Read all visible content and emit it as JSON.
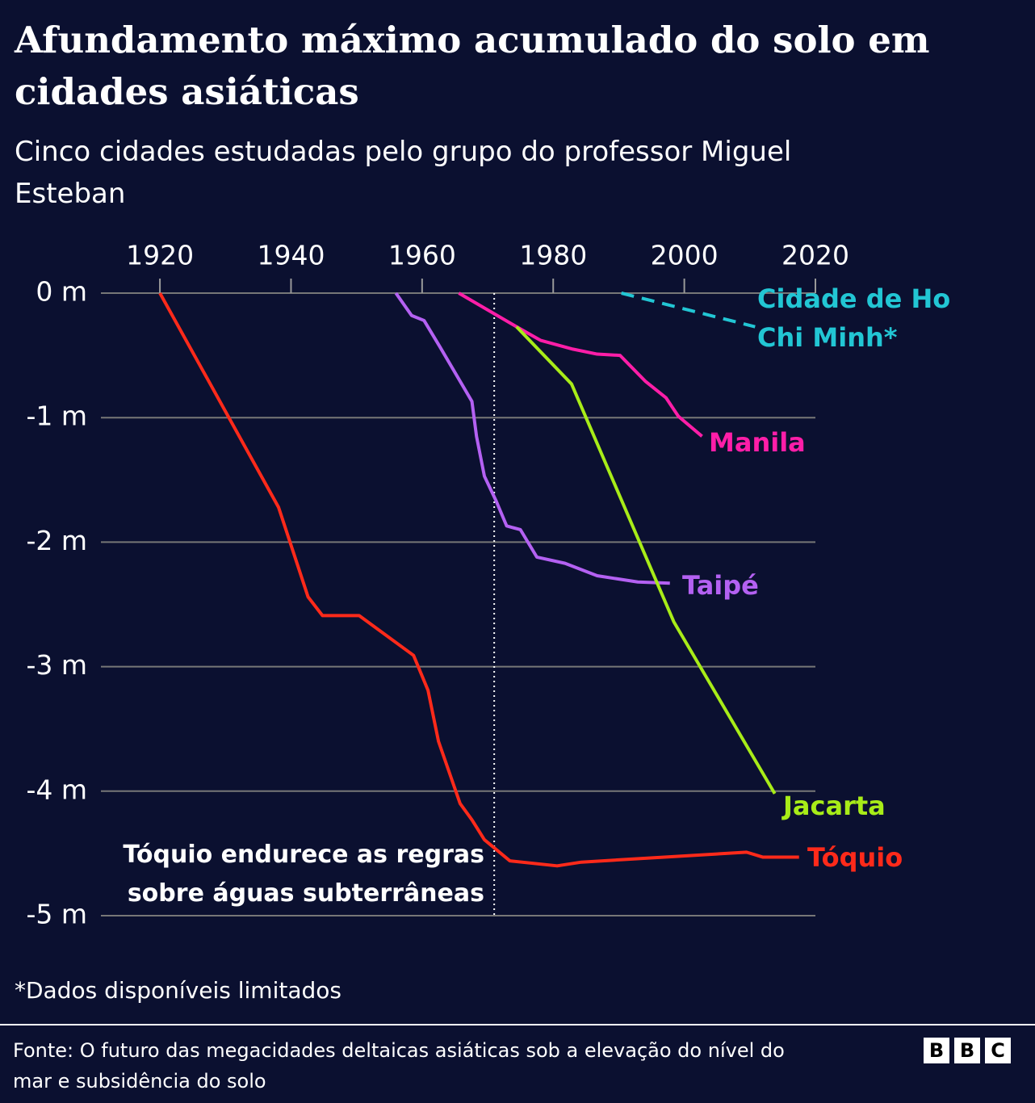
{
  "chart_data": {
    "type": "line",
    "title": "Afundamento máximo acumulado do solo em cidades asiáticas",
    "subtitle": "Cinco cidades estudadas pelo grupo do professor Miguel Esteban",
    "xlim": [
      1911,
      2020
    ],
    "xticks": [
      1920,
      1940,
      1960,
      1980,
      2000,
      2020
    ],
    "ylim": [
      -5,
      0
    ],
    "yticks": [
      {
        "value": 0,
        "label": "0 m"
      },
      {
        "value": -1,
        "label": "-1 m"
      },
      {
        "value": -2,
        "label": "-2 m"
      },
      {
        "value": -3,
        "label": "-3 m"
      },
      {
        "value": -4,
        "label": "-4 m"
      },
      {
        "value": -5,
        "label": "-5 m"
      }
    ],
    "grid": true,
    "series": [
      {
        "name": "Cidade de Ho Chi Minh*",
        "color": "#22c6d4",
        "dashed": true,
        "x": [
          1990.4,
          2010.8
        ],
        "values": [
          0,
          -0.27
        ]
      },
      {
        "name": "Manila",
        "color": "#ff1ea8",
        "x": [
          1965.6,
          1974.4,
          1978.1,
          1983,
          1986.7,
          1990.2,
          1994.1,
          1997.2,
          1999.1,
          2002.7
        ],
        "values": [
          0,
          -0.27,
          -0.38,
          -0.45,
          -0.49,
          -0.5,
          -0.71,
          -0.84,
          -0.99,
          -1.15
        ]
      },
      {
        "name": "Taipé",
        "color": "#b461f2",
        "x": [
          1956,
          1958.4,
          1960.3,
          1962.7,
          1967.6,
          1968.3,
          1969.5,
          1971.3,
          1972.9,
          1975,
          1977.5,
          1981.8,
          1986.7,
          1992.9,
          1997.8
        ],
        "values": [
          0,
          -0.18,
          -0.22,
          -0.43,
          -0.87,
          -1.15,
          -1.47,
          -1.67,
          -1.87,
          -1.9,
          -2.12,
          -2.17,
          -2.27,
          -2.32,
          -2.33
        ]
      },
      {
        "name": "Jacarta",
        "color": "#a8ec18",
        "x": [
          1974.4,
          1982.8,
          1998.4,
          2013.8
        ],
        "values": [
          -0.27,
          -0.73,
          -2.64,
          -4.02
        ]
      },
      {
        "name": "Tóquio",
        "color": "#ff2a1a",
        "x": [
          1920,
          1938.1,
          1942.6,
          1944.8,
          1950.4,
          1958.7,
          1960.9,
          1962.5,
          1965.8,
          1967.6,
          1969.5,
          1973.4,
          1980.6,
          1984.3,
          2009.5,
          2012,
          2017.5
        ],
        "values": [
          0,
          -1.72,
          -2.44,
          -2.59,
          -2.59,
          -2.91,
          -3.19,
          -3.6,
          -4.1,
          -4.23,
          -4.39,
          -4.56,
          -4.6,
          -4.57,
          -4.49,
          -4.53,
          -4.53
        ]
      }
    ],
    "reference_line": {
      "x": 1971,
      "label": "Tóquio endurece as regras sobre águas subterrâneas"
    },
    "footnote": "*Dados disponíveis limitados"
  },
  "footer": {
    "source": "Fonte: O futuro das megacidades deltaicas asiáticas sob a elevação do nível do mar e subsidência do solo",
    "brand": "BBC"
  }
}
